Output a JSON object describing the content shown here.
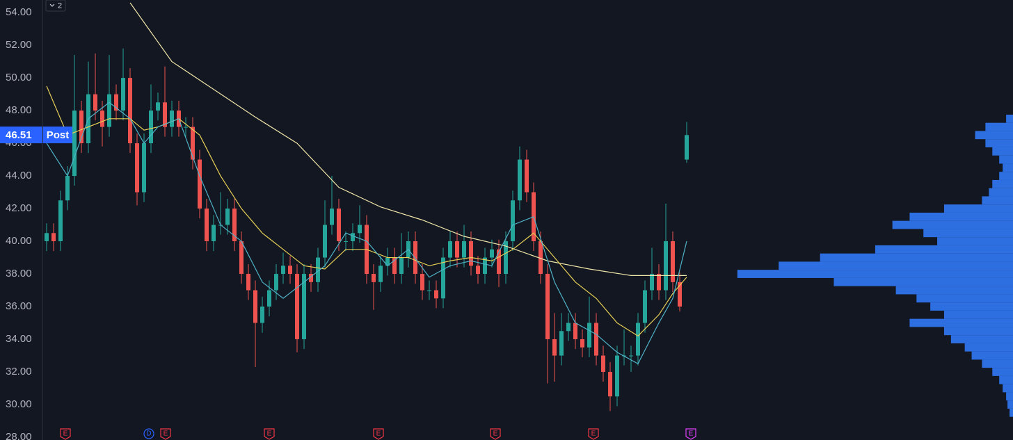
{
  "toolbar": {
    "collapse_count": "2"
  },
  "chart_data": {
    "type": "candlestick",
    "ylim": [
      27.83,
      54.77
    ],
    "yticks": [
      {
        "value": 54,
        "label": "54.00"
      },
      {
        "value": 52,
        "label": "52.00"
      },
      {
        "value": 50,
        "label": "50.00"
      },
      {
        "value": 48,
        "label": "48.00"
      },
      {
        "value": 46,
        "label": "46.00"
      },
      {
        "value": 44,
        "label": "44.00"
      },
      {
        "value": 42,
        "label": "42.00"
      },
      {
        "value": 40,
        "label": "40.00"
      },
      {
        "value": 38,
        "label": "38.00"
      },
      {
        "value": 36,
        "label": "36.00"
      },
      {
        "value": 34,
        "label": "34.00"
      },
      {
        "value": 32,
        "label": "32.00"
      },
      {
        "value": 30,
        "label": "30.00"
      },
      {
        "value": 28,
        "label": "28.00"
      }
    ],
    "up_color": "#26a69a",
    "down_color": "#ef5350",
    "open": [
      40,
      40.5,
      40,
      42.5,
      44,
      48,
      46,
      49,
      48,
      47,
      49,
      48,
      50,
      46,
      43,
      46,
      48,
      48.5,
      47,
      48,
      47,
      47,
      45,
      42,
      40,
      41,
      41,
      42,
      40,
      38,
      37,
      35,
      36,
      37,
      38,
      38.5,
      38,
      34,
      38,
      37.5,
      39,
      41,
      42,
      40,
      40,
      40.5,
      41,
      38,
      37.5,
      38.5,
      39,
      38,
      39,
      40,
      38,
      37,
      37,
      36.5,
      39,
      40,
      39,
      40,
      38.5,
      38,
      39,
      39.5,
      38,
      40,
      42.5,
      45,
      43,
      40,
      38,
      34,
      33,
      34.5,
      35,
      34,
      33.5,
      35,
      33,
      32,
      30.5,
      33,
      33,
      33,
      35,
      37,
      38,
      37,
      40,
      37.5,
      45
    ],
    "high": [
      41.1,
      41.1,
      43.1,
      44.6,
      51.4,
      48.6,
      51,
      51.5,
      48.6,
      51.4,
      49.6,
      51.8,
      50.6,
      46.6,
      46.6,
      49.6,
      49.1,
      50.7,
      48.6,
      48.6,
      47.6,
      47.6,
      45.6,
      42.6,
      41.6,
      43,
      42.6,
      42.6,
      40.6,
      38.6,
      37.6,
      36.6,
      37.6,
      38.6,
      39.3,
      39.1,
      38.6,
      38.6,
      38.6,
      39.6,
      42.5,
      44,
      42.6,
      40.6,
      41.1,
      42.2,
      41.6,
      38.6,
      39.1,
      39.6,
      39.6,
      40.5,
      40.6,
      40.6,
      38.6,
      37.6,
      37.6,
      39.6,
      40.6,
      40.6,
      41,
      40.6,
      39.1,
      39.6,
      40.1,
      40.1,
      40.6,
      43.1,
      45.8,
      45.6,
      43.6,
      40.6,
      38.6,
      35.6,
      35.6,
      35.6,
      35.6,
      34.6,
      36.6,
      35.6,
      33.6,
      32.6,
      33.6,
      34.6,
      33.6,
      35.6,
      37.6,
      39.6,
      38.6,
      42.3,
      40.6,
      38.1,
      47.3
    ],
    "low": [
      39.4,
      39.4,
      39.4,
      41.9,
      43.4,
      45.4,
      45.4,
      47.4,
      45.8,
      46.4,
      47.4,
      47.4,
      45.4,
      42.2,
      42.4,
      45.4,
      47.4,
      46.4,
      46.4,
      46.4,
      46.4,
      44.4,
      41.4,
      39.4,
      39.4,
      40.4,
      40.4,
      39.4,
      37.4,
      36.4,
      32.3,
      34.4,
      35.4,
      36.4,
      37.4,
      37.4,
      33.2,
      33.4,
      36.9,
      36.9,
      38.4,
      40.4,
      39.4,
      39.4,
      39.4,
      39.9,
      37.4,
      35.8,
      36.9,
      37.9,
      37.4,
      37.4,
      38.4,
      37.4,
      36.4,
      36.4,
      35.9,
      35.9,
      38.4,
      38.4,
      38.4,
      37.9,
      37.4,
      37.4,
      38.4,
      37.2,
      37.4,
      39.4,
      41.9,
      42.4,
      39.4,
      37.4,
      31.3,
      31.4,
      32.4,
      33.9,
      33.4,
      32.9,
      32.9,
      32.4,
      31.4,
      29.6,
      29.9,
      32.4,
      32,
      32.4,
      34.4,
      36.4,
      36.4,
      36.4,
      36.9,
      35.7,
      44.8
    ],
    "close": [
      40.5,
      40,
      42.5,
      44,
      48,
      46,
      49,
      48,
      47,
      49,
      48,
      50,
      46,
      43,
      46,
      48,
      48.5,
      47,
      48,
      47,
      47,
      45,
      42,
      40,
      41,
      41,
      42,
      40,
      38,
      37,
      35,
      36,
      37,
      38,
      38.5,
      38,
      34,
      38,
      37.5,
      39,
      41,
      42,
      40,
      40,
      40.5,
      41,
      38,
      37.5,
      38.5,
      39,
      38,
      39,
      40,
      38,
      37,
      37,
      36.5,
      39,
      40,
      39,
      40,
      38.5,
      38,
      39,
      39.5,
      38,
      40,
      42.5,
      45,
      43,
      40,
      38,
      34,
      33,
      34.5,
      35,
      34,
      33.5,
      35,
      33,
      32,
      30.5,
      33,
      33,
      33,
      35,
      37,
      38,
      37,
      40,
      37.5,
      36,
      46.5
    ],
    "lines": [
      {
        "color": "#efe5a8",
        "x": [
          12,
          18,
          24,
          30,
          36,
          42,
          48,
          54,
          60,
          66,
          72,
          78,
          84,
          92
        ],
        "values": [
          54.6,
          51,
          49.3,
          47.6,
          46,
          43.3,
          42.1,
          41.3,
          40.3,
          39.7,
          38.8,
          38.3,
          37.9,
          37.9
        ]
      },
      {
        "color": "#e6cf55",
        "x": [
          0,
          3,
          6,
          9,
          12,
          14,
          16,
          19,
          22,
          25,
          28,
          31,
          34,
          37,
          40,
          43,
          46,
          49,
          52,
          55,
          58,
          61,
          64,
          67,
          70,
          73,
          76,
          79,
          82,
          85,
          88,
          90,
          92
        ],
        "values": [
          49.5,
          46.5,
          47,
          47.5,
          47.5,
          46.8,
          47,
          47.5,
          46.5,
          44,
          42,
          40.5,
          39.5,
          38.5,
          38.3,
          39.5,
          39.5,
          39,
          39,
          38.5,
          38.8,
          39,
          38.8,
          39.5,
          40.5,
          39,
          37.5,
          36.5,
          35,
          34.2,
          35.5,
          36.8,
          37.8
        ]
      },
      {
        "color": "#4fb3c8",
        "x": [
          0,
          3,
          6,
          9,
          12,
          14,
          16,
          19,
          22,
          25,
          28,
          31,
          34,
          37,
          40,
          43,
          46,
          49,
          52,
          55,
          58,
          61,
          64,
          67,
          70,
          73,
          76,
          79,
          82,
          85,
          88,
          90,
          92
        ],
        "values": [
          46,
          44,
          47.5,
          48.5,
          47.5,
          46,
          47,
          47.5,
          44,
          41,
          40,
          37.5,
          36.5,
          37.5,
          38.5,
          40.5,
          40,
          38.5,
          39.5,
          37.8,
          38.5,
          38.8,
          38.5,
          41,
          41.5,
          37.5,
          35,
          34.3,
          33.2,
          32.5,
          35,
          36.5,
          40
        ]
      }
    ],
    "volume_profile": {
      "color": "#2e74ec",
      "xlim": [
        0,
        420
      ],
      "levels": [
        47.5,
        47,
        46.5,
        46,
        45.5,
        45,
        44.5,
        44,
        43.5,
        43,
        42.5,
        42,
        41.5,
        41,
        40.5,
        40,
        39.5,
        39,
        38.5,
        38,
        37.5,
        37,
        36.5,
        36,
        35.5,
        35,
        34.5,
        34,
        33.5,
        33,
        32.5,
        32,
        31.5,
        31,
        30.5,
        30,
        29.5
      ],
      "values": [
        10,
        40,
        55,
        40,
        30,
        20,
        15,
        20,
        30,
        35,
        45,
        100,
        150,
        175,
        130,
        110,
        200,
        280,
        340,
        400,
        260,
        170,
        140,
        120,
        100,
        150,
        100,
        90,
        70,
        60,
        45,
        30,
        20,
        15,
        10,
        8,
        5
      ]
    },
    "last_price": 46.51,
    "session_label": "Post",
    "price_tag_color": "#2962ff",
    "events": [
      {
        "label": "E",
        "x": 3.2,
        "color": "#f23645"
      },
      {
        "label": "D",
        "x": 15.2,
        "color": "#2962ff"
      },
      {
        "label": "E",
        "x": 17.6,
        "color": "#f23645"
      },
      {
        "label": "E",
        "x": 32.5,
        "color": "#f23645"
      },
      {
        "label": "E",
        "x": 48.2,
        "color": "#f23645"
      },
      {
        "label": "E",
        "x": 65,
        "color": "#f23645"
      },
      {
        "label": "E",
        "x": 79.1,
        "color": "#f23645"
      },
      {
        "label": "E",
        "x": 93.1,
        "color": "#e040fb"
      }
    ]
  }
}
